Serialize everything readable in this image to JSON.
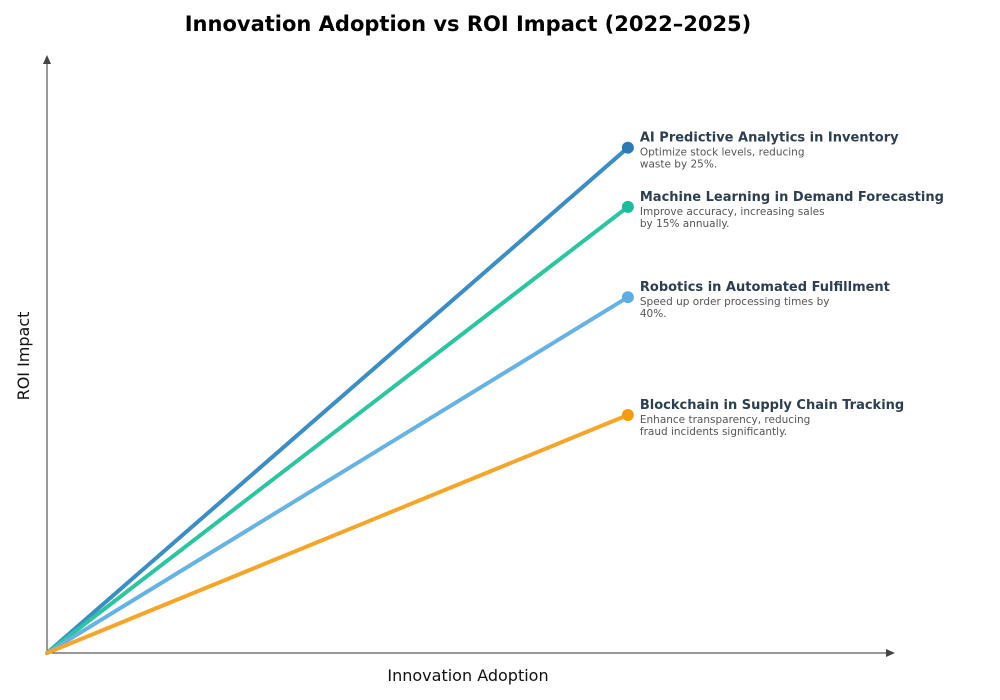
{
  "chart_data": {
    "type": "line",
    "title": "Innovation Adoption vs ROI Impact (2022–2025)",
    "xlabel": "Innovation Adoption",
    "ylabel": "ROI Impact",
    "xlim": [
      0,
      1
    ],
    "ylim": [
      0,
      1
    ],
    "grid": false,
    "series": [
      {
        "name": "AI Predictive Analytics in Inventory",
        "description": [
          "Optimize stock levels, reducing",
          "waste by 25%."
        ],
        "x": [
          0,
          0.685
        ],
        "y": [
          0,
          0.845
        ],
        "line_color": "#3b8dc4",
        "dot_color": "#2a7ab8"
      },
      {
        "name": "Machine Learning in Demand Forecasting",
        "description": [
          "Improve accuracy, increasing sales",
          "by 15% annually."
        ],
        "x": [
          0,
          0.685
        ],
        "y": [
          0,
          0.746
        ],
        "line_color": "#2ec4a0",
        "dot_color": "#1abc9c"
      },
      {
        "name": "Robotics in Automated Fulfillment",
        "description": [
          "Speed up order processing times by",
          "40%."
        ],
        "x": [
          0,
          0.685
        ],
        "y": [
          0,
          0.595
        ],
        "line_color": "#66b3e3",
        "dot_color": "#5dade2"
      },
      {
        "name": "Blockchain in Supply Chain Tracking",
        "description": [
          "Enhance transparency, reducing",
          "fraud incidents significantly."
        ],
        "x": [
          0,
          0.685
        ],
        "y": [
          0,
          0.398
        ],
        "line_color": "#f5a62a",
        "dot_color": "#f39c12"
      }
    ]
  }
}
